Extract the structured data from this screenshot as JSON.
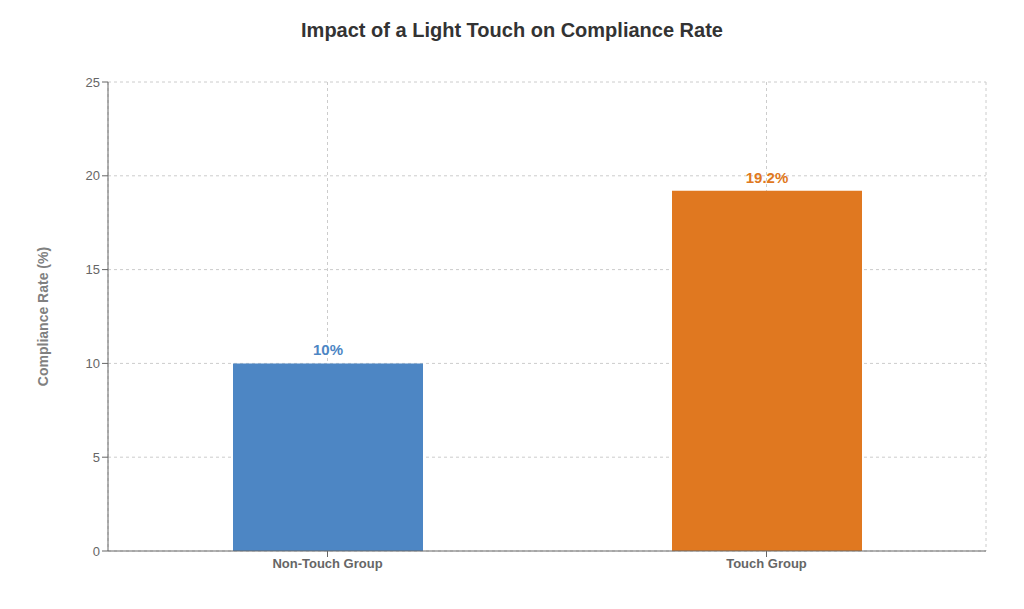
{
  "chart_data": {
    "type": "bar",
    "title": "Impact of a Light Touch on Compliance Rate",
    "ylabel": "Compliance Rate (%)",
    "categories": [
      "Non-Touch Group",
      "Touch Group"
    ],
    "values": [
      10,
      19.2
    ],
    "value_labels": [
      "10%",
      "19.2%"
    ],
    "data_labels": true,
    "colors": [
      "#4d86c4",
      "#e07820"
    ],
    "ylim": [
      0,
      25
    ],
    "yticks": [
      0,
      5,
      10,
      15,
      20,
      25
    ],
    "grid": true
  }
}
